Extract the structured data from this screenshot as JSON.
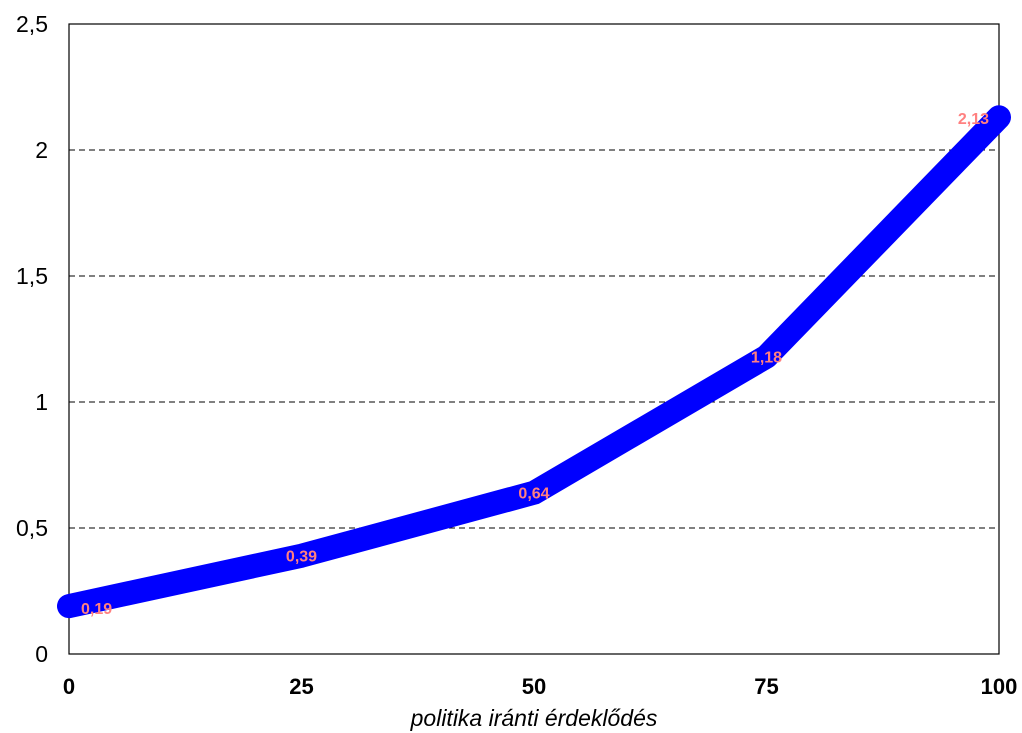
{
  "chart_data": {
    "type": "line",
    "x": [
      0,
      25,
      50,
      75,
      100
    ],
    "categories": [
      "0",
      "25",
      "50",
      "75",
      "100"
    ],
    "series": [
      {
        "values": [
          0.19,
          0.39,
          0.64,
          1.18,
          2.13
        ],
        "labels": [
          "0,19",
          "0,39",
          "0,64",
          "1,18",
          "2,13"
        ]
      }
    ],
    "xlabel": "politika iránti érdeklődés",
    "ylabel": "",
    "title": "",
    "xlim": [
      0,
      100
    ],
    "ylim": [
      0,
      2.5
    ],
    "y_ticks": [
      0,
      0.5,
      1,
      1.5,
      2,
      2.5
    ],
    "y_tick_labels": [
      "0",
      "0,5",
      "1",
      "1,5",
      "2",
      "2,5"
    ],
    "grid": "horizontal dashed",
    "legend": "none",
    "colors": {
      "line": "#0000ff",
      "data_label": "#ff8080",
      "grid": "#000000",
      "frame": "#000000"
    }
  }
}
